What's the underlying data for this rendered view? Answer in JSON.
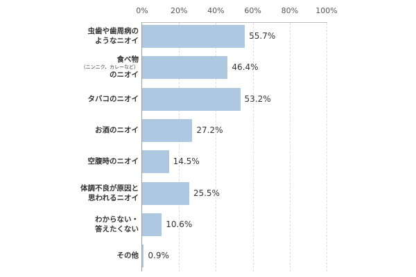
{
  "chart_data": {
    "type": "bar",
    "orientation": "horizontal",
    "title": "",
    "xlabel": "",
    "ylabel": "",
    "xlim": [
      0,
      100
    ],
    "x_ticks": [
      "0%",
      "20%",
      "40%",
      "60%",
      "80%",
      "100%"
    ],
    "grid": true,
    "bar_color": "#adc8e0",
    "categories": [
      "虫歯や歯周病のようなニオイ",
      "食べ物（ニンニク、カレーなど）のニオイ",
      "タバコのニオイ",
      "お酒のニオイ",
      "空腹時のニオイ",
      "体調不良が原因と思われるニオイ",
      "わからない・答えたくない",
      "その他"
    ],
    "values": [
      55.7,
      46.4,
      53.2,
      27.2,
      14.5,
      25.5,
      10.6,
      0.9
    ],
    "value_labels": [
      "55.7%",
      "46.4%",
      "53.2%",
      "27.2%",
      "14.5%",
      "25.5%",
      "10.6%",
      "0.9%"
    ]
  },
  "labels": [
    {
      "lines": [
        "虫歯や歯周病の",
        "ようなニオイ"
      ]
    },
    {
      "lines": [
        "食べ物",
        "（ニンニク、カレーなど）",
        "のニオイ"
      ]
    },
    {
      "lines": [
        "タバコのニオイ"
      ]
    },
    {
      "lines": [
        "お酒のニオイ"
      ]
    },
    {
      "lines": [
        "空腹時のニオイ"
      ]
    },
    {
      "lines": [
        "体調不良が原因と",
        "思われるニオイ"
      ]
    },
    {
      "lines": [
        "わからない・",
        "答えたくない"
      ]
    },
    {
      "lines": [
        "その他"
      ]
    }
  ]
}
